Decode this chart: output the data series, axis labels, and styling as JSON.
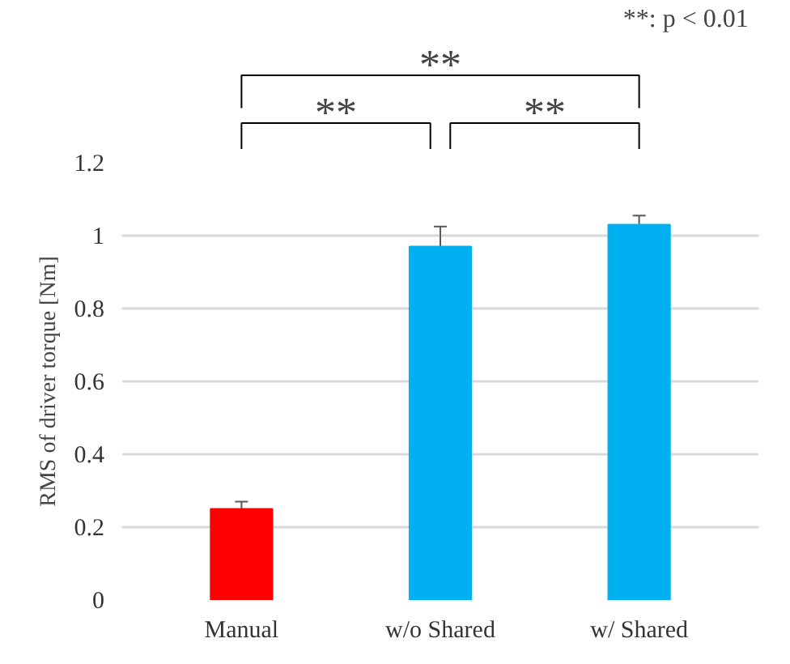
{
  "chart_data": {
    "type": "bar",
    "categories": [
      "Manual",
      "w/o Shared",
      "w/ Shared"
    ],
    "values": [
      0.25,
      0.97,
      1.03
    ],
    "colors": [
      "#ff0000",
      "#00b0f0",
      "#00b0f0"
    ],
    "errors": [
      0.02,
      0.055,
      0.025
    ],
    "ylabel": "RMS of driver torque [Nm]",
    "ylim": [
      0,
      1.2
    ],
    "yticks": [
      0,
      0.2,
      0.4,
      0.6,
      0.8,
      1,
      1.2
    ],
    "grid": "y",
    "annotations": [
      "**: p < 0.01",
      "**",
      "**",
      "**"
    ]
  }
}
